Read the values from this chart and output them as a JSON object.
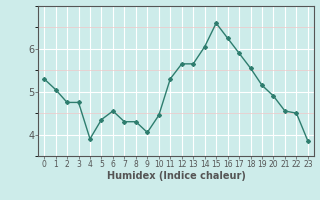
{
  "x": [
    0,
    1,
    2,
    3,
    4,
    5,
    6,
    7,
    8,
    9,
    10,
    11,
    12,
    13,
    14,
    15,
    16,
    17,
    18,
    19,
    20,
    21,
    22,
    23
  ],
  "y": [
    5.3,
    5.05,
    4.75,
    4.75,
    3.9,
    4.35,
    4.55,
    4.3,
    4.3,
    4.05,
    4.45,
    5.3,
    5.65,
    5.65,
    6.05,
    6.6,
    6.25,
    5.9,
    5.55,
    5.15,
    4.9,
    4.55,
    4.5,
    3.85
  ],
  "line_color": "#2e7d6e",
  "marker": "D",
  "markersize": 2.0,
  "linewidth": 1.0,
  "xlabel": "Humidex (Indice chaleur)",
  "xlabel_fontsize": 7,
  "bg_color": "#cdecea",
  "grid_color": "#ffffff",
  "grid_minor_color": "#e8f8f7",
  "axis_color": "#555555",
  "yticks": [
    4,
    5,
    6
  ],
  "ylim": [
    3.5,
    7.0
  ],
  "xlim": [
    -0.5,
    23.5
  ],
  "xtick_labels": [
    "0",
    "1",
    "2",
    "3",
    "4",
    "5",
    "6",
    "7",
    "8",
    "9",
    "10",
    "11",
    "12",
    "13",
    "14",
    "15",
    "16",
    "17",
    "18",
    "19",
    "20",
    "21",
    "22",
    "23"
  ],
  "tick_fontsize": 5.5,
  "ytick_fontsize": 7
}
